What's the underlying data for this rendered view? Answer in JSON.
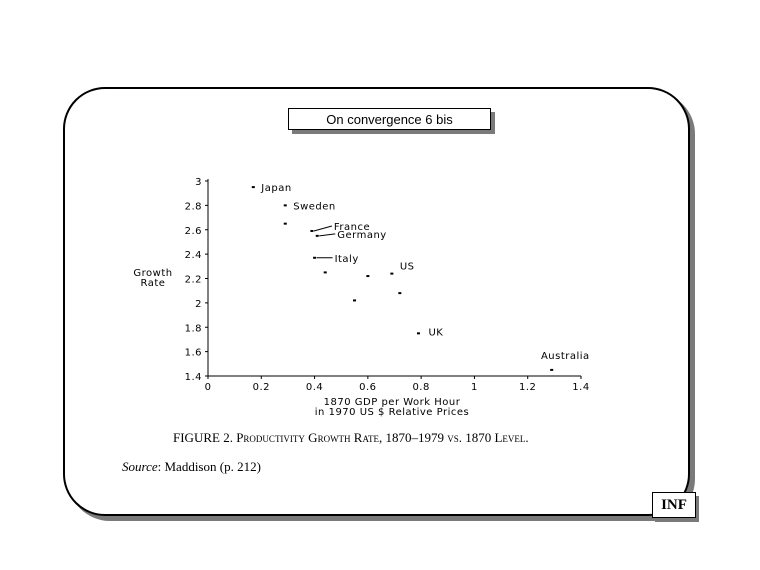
{
  "slide": {
    "title": "On convergence 6 bis",
    "badge": "INF"
  },
  "caption": {
    "prefix": "FIGURE 2.",
    "text": "Productivity Growth Rate, 1870–1979 vs. 1870 Level."
  },
  "source": {
    "label": "Source",
    "text": ": Maddison (p. 212)"
  },
  "chart_data": {
    "type": "scatter",
    "ylabel": [
      "Growth",
      "Rate"
    ],
    "xlabel": [
      "1870 GDP per Work Hour",
      "in 1970 US $ Relative Prices"
    ],
    "xlim": [
      0,
      1.4
    ],
    "ylim": [
      1.4,
      3
    ],
    "xticks": [
      "0",
      "0.2",
      "0.4",
      "0.6",
      "0.8",
      "1",
      "1.2",
      "1.4"
    ],
    "yticks": [
      "1.4",
      "1.6",
      "1.8",
      "2",
      "2.2",
      "2.4",
      "2.6",
      "2.8",
      "3"
    ],
    "grid": false,
    "points": [
      {
        "x": 0.17,
        "y": 2.95,
        "label": "Japan"
      },
      {
        "x": 0.29,
        "y": 2.8,
        "label": "Sweden"
      },
      {
        "x": 0.29,
        "y": 2.65,
        "label": ""
      },
      {
        "x": 0.39,
        "y": 2.59,
        "label": "France"
      },
      {
        "x": 0.41,
        "y": 2.55,
        "label": "Germany"
      },
      {
        "x": 0.4,
        "y": 2.37,
        "label": "Italy"
      },
      {
        "x": 0.44,
        "y": 2.25,
        "label": ""
      },
      {
        "x": 0.6,
        "y": 2.22,
        "label": ""
      },
      {
        "x": 0.69,
        "y": 2.24,
        "label": "US"
      },
      {
        "x": 0.72,
        "y": 2.08,
        "label": ""
      },
      {
        "x": 0.55,
        "y": 2.02,
        "label": ""
      },
      {
        "x": 0.79,
        "y": 1.75,
        "label": "UK"
      },
      {
        "x": 1.29,
        "y": 1.45,
        "label": "Australia"
      }
    ]
  }
}
